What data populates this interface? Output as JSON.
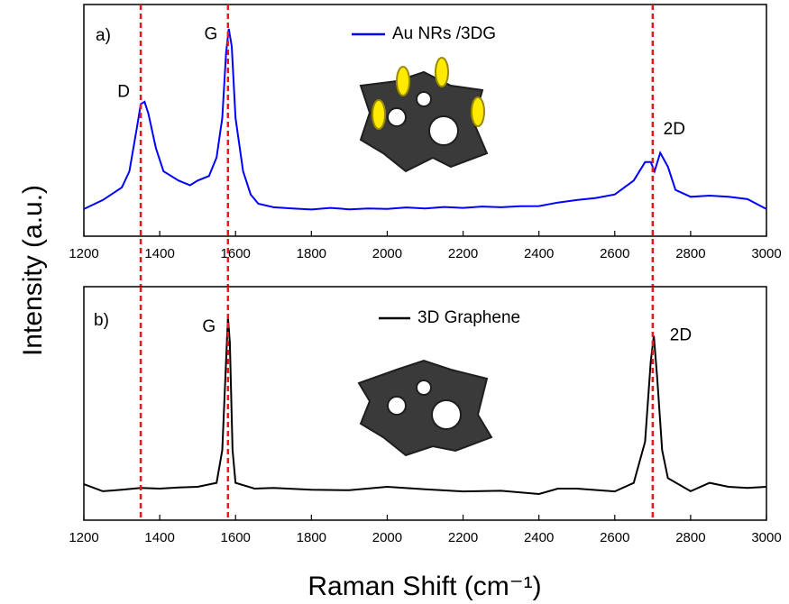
{
  "chart_data": [
    {
      "type": "line",
      "panel_label": "a)",
      "legend_loc": "upper center",
      "xlim": [
        1200,
        3000
      ],
      "xticks": [
        1200,
        1400,
        1600,
        1800,
        2000,
        2200,
        2400,
        2600,
        2800,
        3000
      ],
      "ylim": [
        0,
        100
      ],
      "x": [
        1200,
        1250,
        1300,
        1320,
        1340,
        1350,
        1360,
        1370,
        1390,
        1410,
        1430,
        1450,
        1480,
        1500,
        1530,
        1550,
        1565,
        1575,
        1582,
        1590,
        1600,
        1620,
        1640,
        1660,
        1700,
        1750,
        1800,
        1850,
        1900,
        1950,
        2000,
        2050,
        2100,
        2150,
        2200,
        2250,
        2300,
        2350,
        2400,
        2450,
        2500,
        2550,
        2600,
        2650,
        2680,
        2695,
        2705,
        2720,
        2740,
        2760,
        2800,
        2850,
        2900,
        2950,
        3000
      ],
      "series": [
        {
          "name": "Au NRs /3DG",
          "color": "#0000ff",
          "values": [
            11.7,
            15.6,
            21,
            28,
            47,
            57,
            58,
            53,
            38,
            28,
            26,
            24,
            22,
            24,
            26,
            34,
            51,
            79,
            89.5,
            82,
            51,
            28,
            18,
            14,
            12.5,
            12,
            11.5,
            12.2,
            11.6,
            12,
            11.8,
            12.4,
            12,
            12.6,
            12.2,
            12.8,
            12.5,
            12.9,
            13,
            14.5,
            15.6,
            16.5,
            18,
            24,
            32,
            32,
            28,
            36,
            30,
            20,
            17,
            17.5,
            17,
            16,
            11.7
          ]
        }
      ],
      "vlines": [
        1350,
        1580,
        2700
      ],
      "vline_color": "#e8191c",
      "annotations": [
        {
          "text": "D",
          "x": 1305,
          "y": 62
        },
        {
          "text": "G",
          "x": 1535,
          "y": 87
        },
        {
          "text": "2D",
          "x": 2757,
          "y": 46
        }
      ]
    },
    {
      "type": "line",
      "panel_label": "b)",
      "legend_loc": "upper center",
      "xlim": [
        1200,
        3000
      ],
      "xticks": [
        1200,
        1400,
        1600,
        1800,
        2000,
        2200,
        2400,
        2600,
        2800,
        3000
      ],
      "ylim": [
        0,
        100
      ],
      "x": [
        1200,
        1250,
        1300,
        1350,
        1400,
        1450,
        1500,
        1550,
        1565,
        1575,
        1580,
        1585,
        1592,
        1600,
        1650,
        1700,
        1800,
        1900,
        2000,
        2100,
        2200,
        2300,
        2400,
        2450,
        2500,
        2600,
        2650,
        2680,
        2695,
        2703,
        2712,
        2725,
        2740,
        2800,
        2850,
        2900,
        2950,
        3000
      ],
      "series": [
        {
          "name": "3D Graphene",
          "color": "#000000",
          "values": [
            15.4,
            12.4,
            13,
            13.8,
            13.5,
            14,
            14.3,
            16,
            30,
            68,
            87,
            76,
            30,
            16,
            13.5,
            13.8,
            13,
            12.8,
            14.3,
            13.2,
            12.3,
            12.6,
            11.2,
            13.5,
            13.5,
            12.3,
            16,
            33.6,
            68,
            79,
            60.6,
            30,
            18,
            12.4,
            16,
            14.3,
            13.8,
            14.3
          ]
        }
      ],
      "vlines": [
        1350,
        1580,
        2700
      ],
      "vline_color": "#e8191c",
      "annotations": [
        {
          "text": "G",
          "x": 1530,
          "y": 82.6
        },
        {
          "text": "2D",
          "x": 2774,
          "y": 79
        }
      ]
    }
  ],
  "ylabel": "Intensity (a.u.)",
  "xlabel": "Raman Shift (cm⁻¹)"
}
